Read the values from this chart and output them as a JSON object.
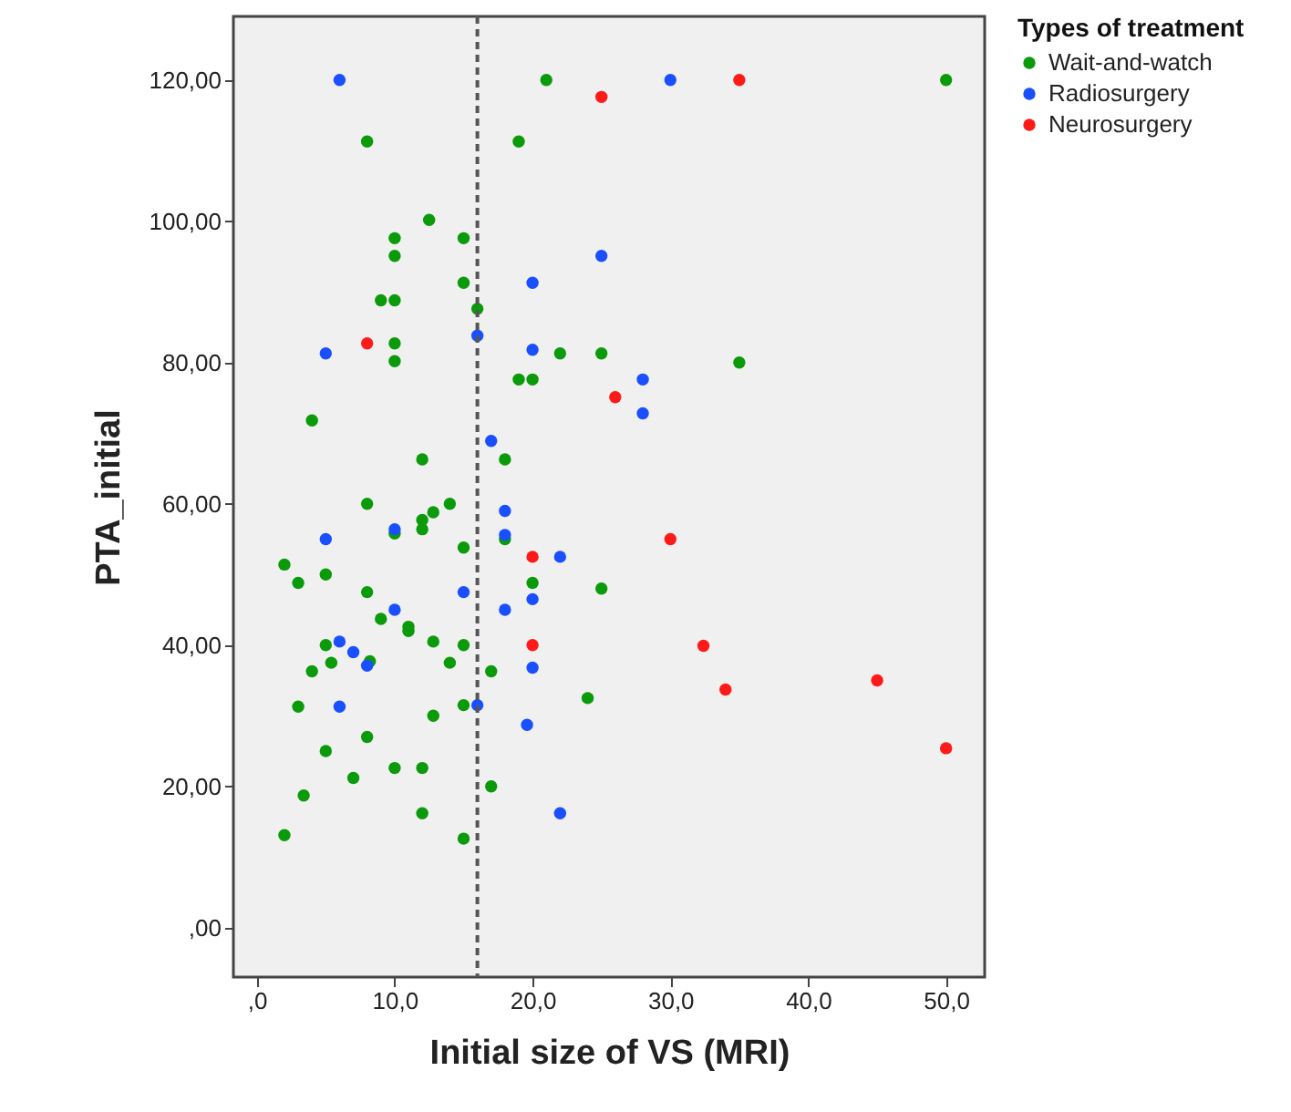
{
  "chart_data": {
    "type": "scatter",
    "xlabel": "Initial size of VS (MRI)",
    "ylabel": "PTA_initial",
    "legend_title": "Types of treatment",
    "xlim": [
      -1.7,
      52.8
    ],
    "ylim": [
      -7,
      129
    ],
    "xticks": [
      {
        "value": 0,
        "label": ",0"
      },
      {
        "value": 10,
        "label": "10,0"
      },
      {
        "value": 20,
        "label": "20,0"
      },
      {
        "value": 30,
        "label": "30,0"
      },
      {
        "value": 40,
        "label": "40,0"
      },
      {
        "value": 50,
        "label": "50,0"
      }
    ],
    "yticks": [
      {
        "value": 0,
        "label": ",00"
      },
      {
        "value": 20,
        "label": "20,00"
      },
      {
        "value": 40,
        "label": "40,00"
      },
      {
        "value": 60,
        "label": "60,00"
      },
      {
        "value": 80,
        "label": "80,00"
      },
      {
        "value": 100,
        "label": "100,00"
      },
      {
        "value": 120,
        "label": "120,00"
      }
    ],
    "marker": "circle",
    "legend": "right",
    "ref_lines": [
      {
        "axis": "x",
        "value": 16,
        "color": "#555555",
        "line_style": "dashed"
      }
    ],
    "series": [
      {
        "name": "Wait-and-watch",
        "color": "#0a9a0a",
        "x": [
          21,
          50,
          8,
          19,
          12.5,
          10,
          10,
          15,
          15,
          9,
          10,
          16,
          10,
          22,
          25,
          10,
          35,
          19,
          20,
          4,
          12,
          18,
          8,
          12.8,
          14,
          12,
          12,
          10,
          18,
          15,
          2,
          3,
          5,
          20,
          25,
          8,
          9,
          11,
          11,
          12.8,
          15,
          5,
          8.2,
          5.4,
          4,
          14,
          17,
          3,
          15,
          12.8,
          24,
          8,
          5,
          10,
          12,
          7,
          17,
          3.4,
          12,
          2,
          15
        ],
        "values": [
          120,
          120,
          111.3,
          111.3,
          100.2,
          97.6,
          95.1,
          97.6,
          91.3,
          88.8,
          88.8,
          87.6,
          82.7,
          81.3,
          81.3,
          80.2,
          80,
          77.6,
          77.6,
          71.8,
          66.3,
          66.3,
          60,
          58.8,
          60,
          57.7,
          56.4,
          55.8,
          55,
          53.8,
          51.4,
          48.8,
          50,
          48.8,
          48,
          47.5,
          43.7,
          42.6,
          42,
          40.5,
          40,
          40,
          37.7,
          37.5,
          36.3,
          37.5,
          36.3,
          31.3,
          31.5,
          30,
          32.5,
          27,
          25,
          22.6,
          22.6,
          21.2,
          20,
          18.7,
          16.2,
          13.1,
          12.6
        ]
      },
      {
        "name": "Radiosurgery",
        "color": "#1a4fff",
        "x": [
          6,
          30,
          25,
          20,
          16,
          5,
          20,
          28,
          28,
          17,
          10,
          18,
          18,
          5,
          22,
          15,
          20,
          18,
          10,
          6,
          7,
          8,
          20,
          6,
          16,
          19.6,
          22
        ],
        "values": [
          120,
          120,
          95.1,
          91.3,
          83.8,
          81.3,
          81.8,
          77.6,
          72.8,
          68.9,
          56.4,
          59,
          55.6,
          55,
          52.5,
          47.5,
          46.5,
          45,
          45,
          40.5,
          39,
          37.1,
          36.8,
          31.3,
          31.5,
          28.7,
          16.2
        ]
      },
      {
        "name": "Neurosurgery",
        "color": "#ff1a1a",
        "x": [
          35,
          25,
          8,
          26,
          30,
          20,
          20,
          32.4,
          34,
          45,
          50
        ],
        "values": [
          120,
          117.6,
          82.7,
          75.1,
          55,
          52.5,
          40,
          39.9,
          33.7,
          35,
          25.4
        ]
      }
    ]
  }
}
